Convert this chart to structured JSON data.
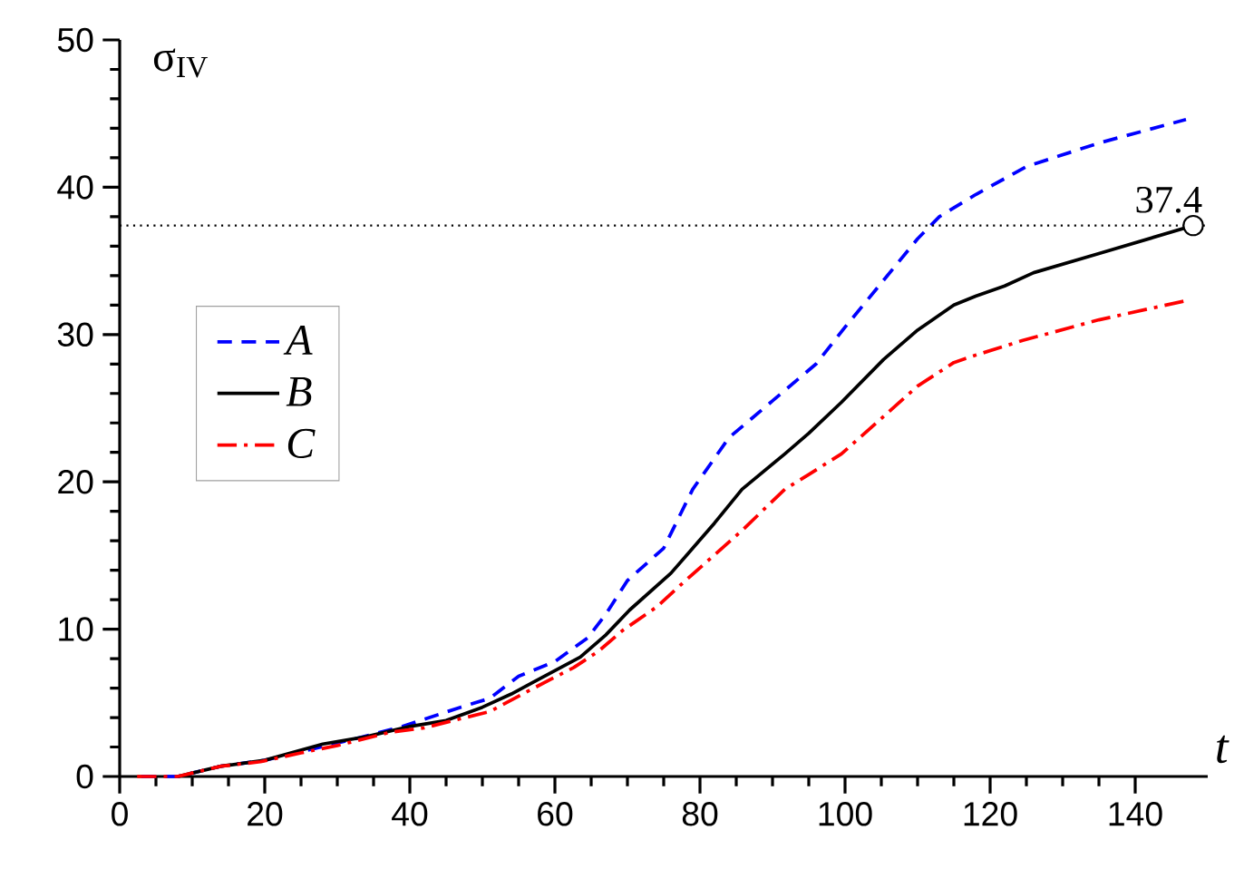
{
  "chart_data": {
    "type": "line",
    "xlabel": "t",
    "ylabel": "σ$_{IV}$",
    "xlim": [
      0,
      150
    ],
    "ylim": [
      0,
      50
    ],
    "xticks": [
      0,
      20,
      40,
      60,
      80,
      100,
      120,
      140
    ],
    "yticks": [
      0,
      10,
      20,
      30,
      40,
      50
    ],
    "grid": false,
    "legend": "left",
    "marker": "none",
    "series": [
      {
        "name": "A",
        "color": "#0000ff",
        "line_style": "dashed",
        "x": [
          3,
          8,
          14,
          20,
          26,
          32,
          39,
          47,
          51,
          55,
          60,
          64.5,
          67,
          70,
          75,
          79,
          84,
          90,
          96,
          100,
          105,
          110,
          113,
          118,
          125,
          135,
          147
        ],
        "values": [
          0,
          0,
          0.7,
          1.1,
          1.8,
          2.5,
          3.4,
          4.7,
          5.3,
          6.8,
          7.8,
          9.4,
          11,
          13.3,
          15.5,
          19.5,
          23,
          25.5,
          28,
          30.5,
          33.5,
          36.5,
          38,
          39.5,
          41.4,
          43,
          44.6
        ]
      },
      {
        "name": "B",
        "color": "#000000",
        "line_style": "solid",
        "x": [
          8,
          14,
          20,
          28,
          34,
          40,
          45,
          50,
          54,
          57,
          63.5,
          67,
          70.3,
          76,
          82,
          85.8,
          91.7,
          95,
          99.5,
          105.3,
          110,
          115,
          118,
          122,
          126,
          135,
          148
        ],
        "values": [
          0,
          0.7,
          1.1,
          2.2,
          2.7,
          3.4,
          3.8,
          4.7,
          5.6,
          6.4,
          8.1,
          9.6,
          11.3,
          13.8,
          17.2,
          19.5,
          21.9,
          23.3,
          25.4,
          28.3,
          30.3,
          32,
          32.6,
          33.3,
          34.2,
          35.5,
          37.4
        ]
      },
      {
        "name": "C",
        "color": "#ff0000",
        "line_style": "dashdot",
        "x": [
          2.4,
          8,
          14,
          19.4,
          25,
          30,
          37.3,
          42,
          46,
          51,
          56.7,
          62.6,
          66,
          69.3,
          74,
          78,
          85.8,
          91.7,
          95,
          99.5,
          105,
          110,
          115,
          118,
          124.5,
          135,
          147
        ],
        "values": [
          0,
          0,
          0.7,
          1.0,
          1.6,
          2.1,
          3.0,
          3.3,
          3.8,
          4.4,
          5.9,
          7.4,
          8.5,
          9.9,
          11.5,
          13.3,
          16.7,
          19.5,
          20.5,
          21.9,
          24.3,
          26.5,
          28.1,
          28.6,
          29.6,
          31,
          32.3
        ]
      }
    ],
    "ref_lines": [
      {
        "axis": "y",
        "value": 37.4,
        "color": "#000000",
        "line_style": "dotted"
      }
    ],
    "annotations": [
      {
        "text": "37.4",
        "x": 148,
        "y": 37.4
      }
    ]
  }
}
